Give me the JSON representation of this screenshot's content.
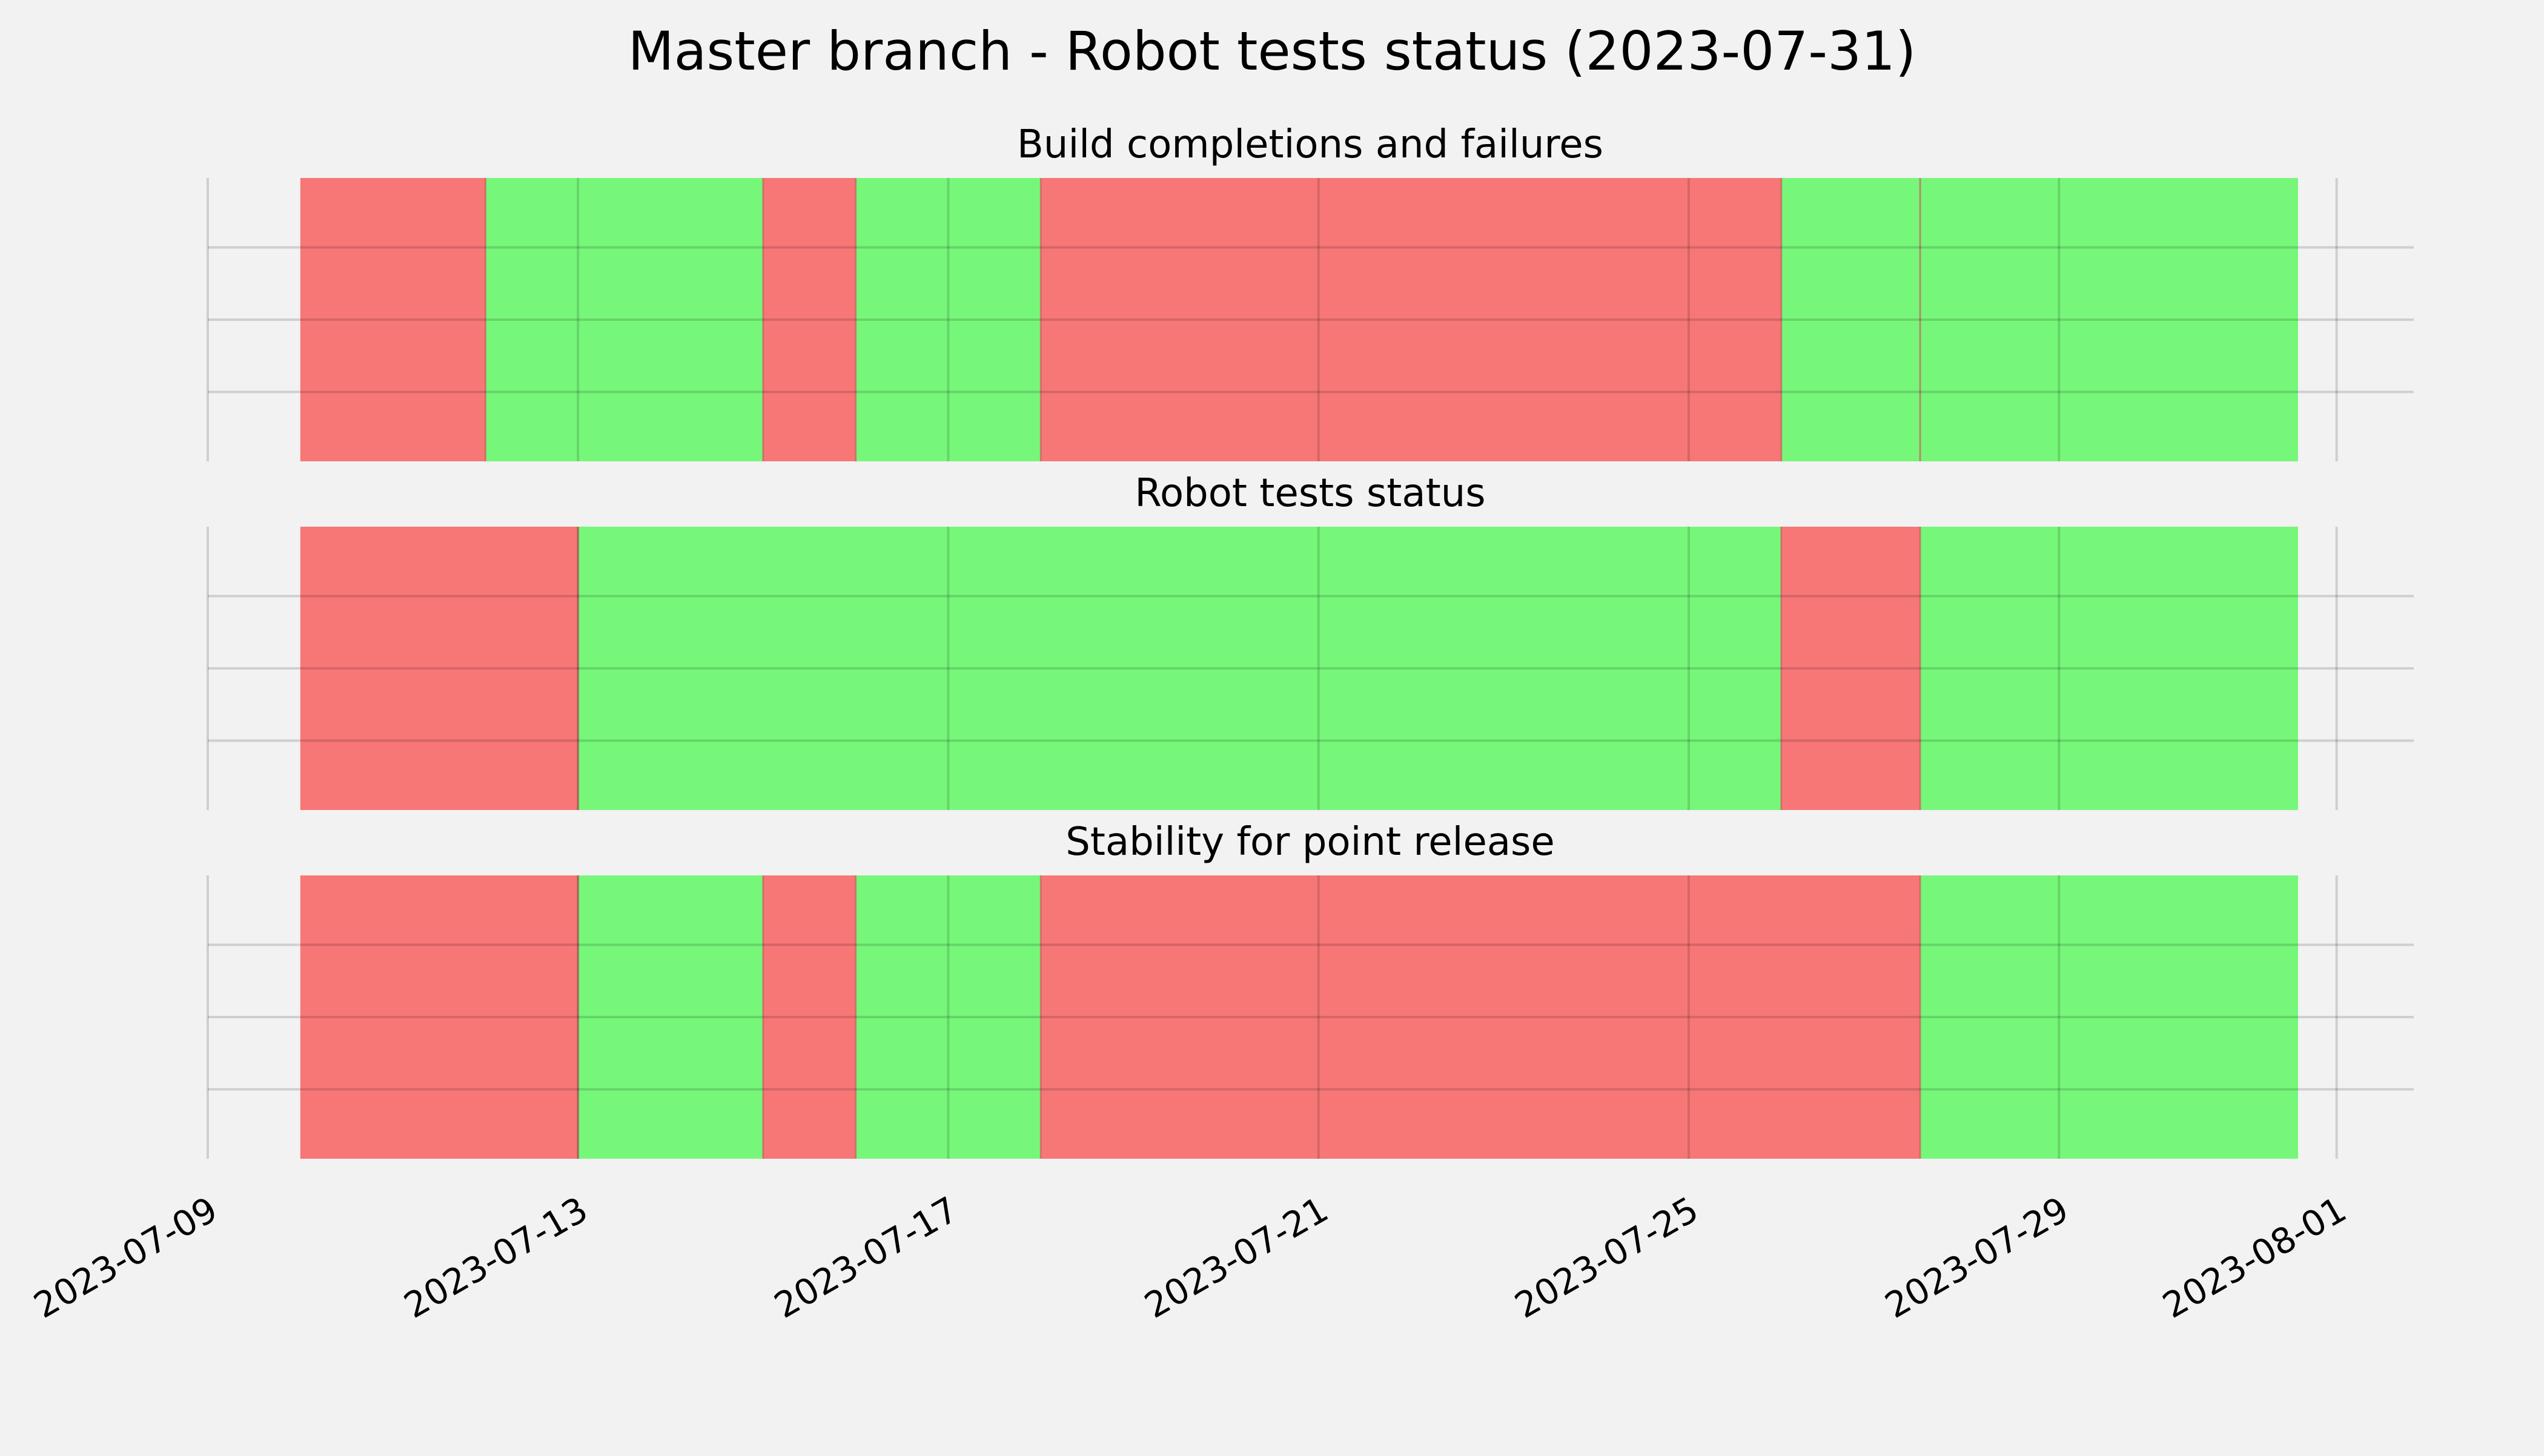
{
  "chart_data": {
    "type": "status-timeline",
    "title": "Master branch - Robot tests status (2023-07-31)",
    "x_axis": {
      "type": "date",
      "range": [
        "2023-07-09",
        "2023-08-01T20:00"
      ],
      "tick_labels": [
        "2023-07-09",
        "2023-07-13",
        "2023-07-17",
        "2023-07-21",
        "2023-07-25",
        "2023-07-29",
        "2023-08-01"
      ],
      "label_rotation": "30deg",
      "grid": true
    },
    "y_axis": {
      "tick_labels": [],
      "grid": true
    },
    "colors": {
      "pass": "#77f77a",
      "fail": "#f77777",
      "background": "#f2f2f2",
      "grid": "#cbcbcb"
    },
    "panels": [
      {
        "title": "Build completions and failures",
        "segments": [
          {
            "start": "2023-07-10T00:00",
            "end": "2023-07-12T00:00",
            "status": "fail"
          },
          {
            "start": "2023-07-12T00:00",
            "end": "2023-07-15T00:00",
            "status": "pass"
          },
          {
            "start": "2023-07-15T00:00",
            "end": "2023-07-16T00:00",
            "status": "fail"
          },
          {
            "start": "2023-07-16T00:00",
            "end": "2023-07-18T00:00",
            "status": "pass"
          },
          {
            "start": "2023-07-18T00:00",
            "end": "2023-07-26T00:00",
            "status": "fail"
          },
          {
            "start": "2023-07-26T00:00",
            "end": "2023-07-27T12:00",
            "status": "pass"
          },
          {
            "start": "2023-07-27T12:00",
            "end": "2023-07-31T14:00",
            "status": "pass"
          }
        ]
      },
      {
        "title": "Robot tests status",
        "segments": [
          {
            "start": "2023-07-10T00:00",
            "end": "2023-07-13T00:00",
            "status": "fail"
          },
          {
            "start": "2023-07-13T00:00",
            "end": "2023-07-26T00:00",
            "status": "pass"
          },
          {
            "start": "2023-07-26T00:00",
            "end": "2023-07-27T12:00",
            "status": "fail"
          },
          {
            "start": "2023-07-27T12:00",
            "end": "2023-07-31T14:00",
            "status": "pass"
          }
        ]
      },
      {
        "title": "Stability for point release",
        "segments": [
          {
            "start": "2023-07-10T00:00",
            "end": "2023-07-13T00:00",
            "status": "fail"
          },
          {
            "start": "2023-07-13T00:00",
            "end": "2023-07-15T00:00",
            "status": "pass"
          },
          {
            "start": "2023-07-15T00:00",
            "end": "2023-07-16T00:00",
            "status": "fail"
          },
          {
            "start": "2023-07-16T00:00",
            "end": "2023-07-18T00:00",
            "status": "pass"
          },
          {
            "start": "2023-07-18T00:00",
            "end": "2023-07-27T12:00",
            "status": "fail"
          },
          {
            "start": "2023-07-27T12:00",
            "end": "2023-07-31T14:00",
            "status": "pass"
          }
        ]
      }
    ]
  }
}
